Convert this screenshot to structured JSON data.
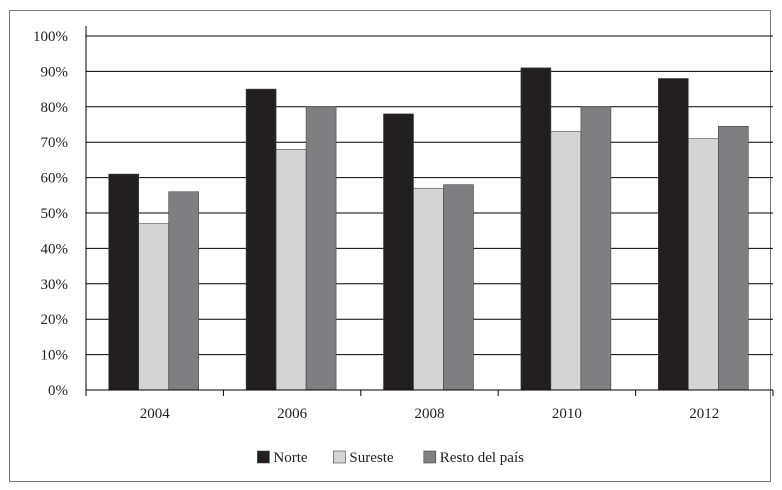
{
  "chart_data": {
    "type": "bar",
    "title": "",
    "xlabel": "",
    "ylabel": "",
    "categories": [
      "2004",
      "2006",
      "2008",
      "2010",
      "2012"
    ],
    "series": [
      {
        "name": "Norte",
        "color": "#231f20",
        "values": [
          61,
          85,
          78,
          91,
          88
        ]
      },
      {
        "name": "Sureste",
        "color": "#d4d4d4",
        "values": [
          47,
          68,
          57,
          73,
          71
        ]
      },
      {
        "name": "Resto del país",
        "color": "#7f7f82",
        "values": [
          56,
          80,
          58,
          80,
          74.5
        ]
      }
    ],
    "ylim": [
      0,
      100
    ],
    "y_ticks": [
      "0%",
      "10%",
      "20%",
      "30%",
      "40%",
      "50%",
      "60%",
      "70%",
      "80%",
      "90%",
      "100%"
    ],
    "grid": true,
    "legend_placement": "bottom-center"
  }
}
